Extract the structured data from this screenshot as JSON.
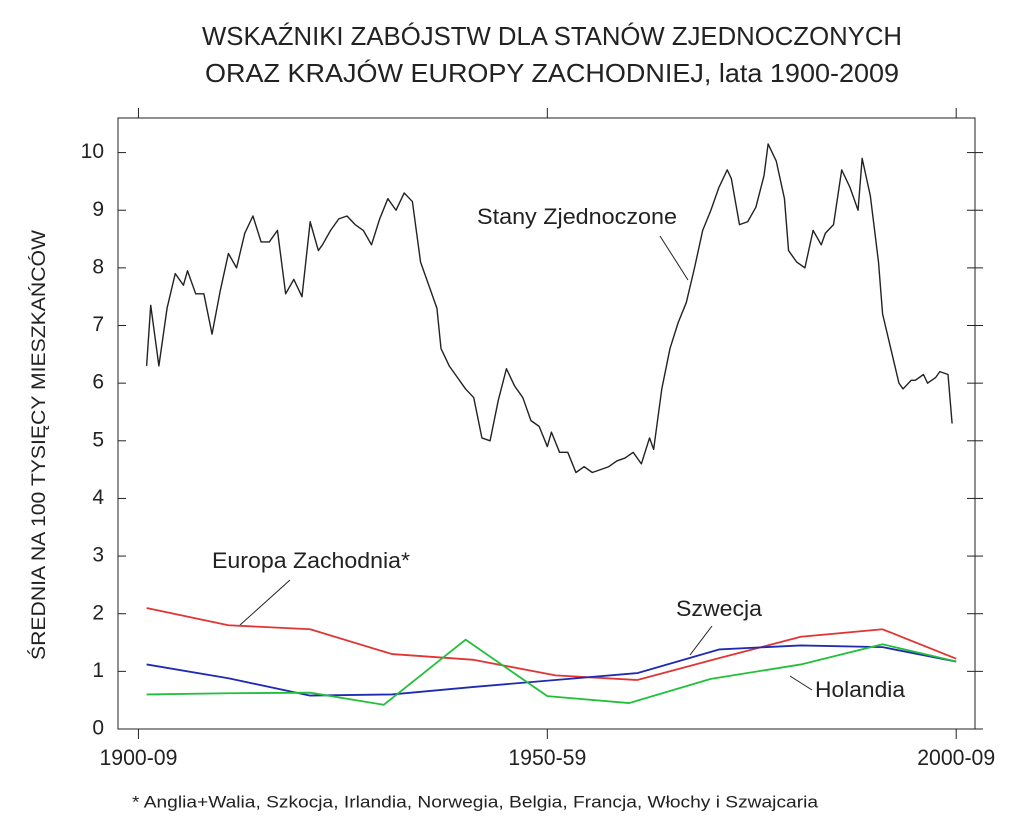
{
  "chart_data": {
    "type": "line",
    "title": [
      "WSKAŹNIKI ZABÓJSTW DLA STANÓW ZJEDNOCZONYCH",
      "ORAZ KRAJÓW EUROPY ZACHODNIEJ, lata 1900-2009"
    ],
    "y_label": "ŚREDNIA NA 100 TYSIĘCY MIESZKAŃCÓW",
    "footnote": "* Anglia+Walia, Szkocja, Irlandia, Norwegia, Belgia, Francja, Włochy i Szwajcaria",
    "xlim": [
      1897.5,
      2002.3
    ],
    "xticks": [
      {
        "value": 1900,
        "label": "1900-09"
      },
      {
        "value": 1950,
        "label": "1950-59"
      },
      {
        "value": 2000,
        "label": "2000-09"
      }
    ],
    "ylim": [
      0,
      10.6
    ],
    "yticks": [
      0,
      1,
      2,
      3,
      4,
      5,
      6,
      7,
      8,
      9,
      10
    ],
    "series": [
      {
        "name": "Stany Zjednoczone",
        "color": "#222222",
        "x": [
          1901,
          1901.5,
          1902.5,
          1903.5,
          1904.5,
          1905.5,
          1906,
          1907,
          1908,
          1909,
          1910,
          1911,
          1912,
          1913,
          1914,
          1915,
          1916,
          1917,
          1918,
          1919,
          1920,
          1921,
          1922,
          1922.5,
          1923.5,
          1924.5,
          1925.5,
          1926.5,
          1927.5,
          1928.5,
          1929.5,
          1930.5,
          1931.5,
          1932.5,
          1933.5,
          1934.5,
          1935.5,
          1936.5,
          1937,
          1938,
          1939,
          1940,
          1941,
          1942,
          1943,
          1944,
          1945,
          1946,
          1947,
          1948,
          1949,
          1950,
          1950.5,
          1951.5,
          1952.5,
          1953.5,
          1954.5,
          1955.5,
          1956.5,
          1957.5,
          1958.5,
          1959.5,
          1960.5,
          1961.5,
          1962.5,
          1963,
          1964,
          1965,
          1966,
          1967,
          1968,
          1969,
          1970,
          1971,
          1972,
          1972.5,
          1973.5,
          1974.5,
          1975.5,
          1976.5,
          1977,
          1978,
          1979,
          1979.5,
          1980.5,
          1981.5,
          1982.5,
          1983.5,
          1984,
          1985,
          1986,
          1987,
          1988,
          1988.5,
          1989.5,
          1990.5,
          1991,
          1992,
          1993,
          1993.5,
          1994.5,
          1995,
          1996,
          1996.5,
          1997.5,
          1998,
          1999,
          1999.5
        ],
        "values": [
          6.3,
          7.35,
          6.3,
          7.3,
          7.9,
          7.7,
          7.95,
          7.55,
          7.55,
          6.85,
          7.6,
          8.25,
          8.0,
          8.6,
          8.9,
          8.45,
          8.45,
          8.65,
          7.55,
          7.8,
          7.5,
          8.8,
          8.3,
          8.4,
          8.65,
          8.85,
          8.9,
          8.75,
          8.65,
          8.4,
          8.85,
          9.2,
          9.0,
          9.3,
          9.15,
          8.1,
          7.7,
          7.3,
          6.6,
          6.3,
          6.1,
          5.9,
          5.75,
          5.05,
          5.0,
          5.7,
          6.25,
          5.95,
          5.75,
          5.35,
          5.25,
          4.9,
          5.15,
          4.8,
          4.8,
          4.45,
          4.55,
          4.45,
          4.5,
          4.55,
          4.65,
          4.7,
          4.8,
          4.6,
          5.05,
          4.85,
          5.9,
          6.6,
          7.05,
          7.4,
          8.0,
          8.65,
          9.0,
          9.4,
          9.7,
          9.55,
          8.75,
          8.8,
          9.05,
          9.6,
          10.15,
          9.85,
          9.2,
          8.3,
          8.1,
          8.0,
          8.65,
          8.4,
          8.6,
          8.75,
          9.7,
          9.4,
          9.0,
          9.9,
          9.25,
          8.1,
          7.2,
          6.6,
          6.0,
          5.9,
          6.05,
          6.05,
          6.15,
          6.0,
          6.1,
          6.2,
          6.15,
          5.3
        ]
      },
      {
        "name": "Europa Zachodnia*",
        "color": "#e03535",
        "x": [
          1901,
          1911,
          1921,
          1931,
          1941,
          1951,
          1961,
          1971,
          1981,
          1991,
          2000
        ],
        "values": [
          2.1,
          1.8,
          1.73,
          1.3,
          1.2,
          0.93,
          0.85,
          1.23,
          1.6,
          1.73,
          1.22
        ]
      },
      {
        "name": "Szwecja",
        "color": "#1f2bb0",
        "x": [
          1901,
          1911,
          1921,
          1931,
          1941,
          1951,
          1961,
          1971,
          1981,
          1991,
          2000
        ],
        "values": [
          1.12,
          0.88,
          0.58,
          0.6,
          0.73,
          0.85,
          0.97,
          1.38,
          1.45,
          1.42,
          1.17
        ]
      },
      {
        "name": "Holandia",
        "color": "#22c03a",
        "x": [
          1901,
          1911,
          1921,
          1930,
          1940,
          1950,
          1960,
          1970,
          1981,
          1991,
          2000
        ],
        "values": [
          0.6,
          0.62,
          0.63,
          0.42,
          1.55,
          0.57,
          0.45,
          0.87,
          1.12,
          1.47,
          1.17
        ]
      }
    ]
  }
}
